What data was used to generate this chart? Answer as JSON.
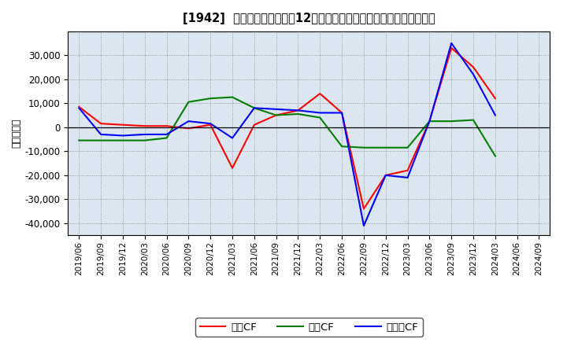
{
  "title": "[1942]  キャッシュフローの12か月移動合計の対前年同期増減額の推移",
  "ylabel": "（百万円）",
  "background_color": "#ffffff",
  "plot_background": "#dce6f1",
  "grid_color": "#aaaaaa",
  "x_labels": [
    "2019/06",
    "2019/09",
    "2019/12",
    "2020/03",
    "2020/06",
    "2020/09",
    "2020/12",
    "2021/03",
    "2021/06",
    "2021/09",
    "2021/12",
    "2022/03",
    "2022/06",
    "2022/09",
    "2022/12",
    "2023/03",
    "2023/06",
    "2023/09",
    "2023/12",
    "2024/03",
    "2024/06",
    "2024/09"
  ],
  "operating_cf": [
    8500,
    1500,
    1000,
    500,
    500,
    -500,
    1000,
    -17000,
    1000,
    5000,
    7000,
    14000,
    6000,
    -34000,
    -20000,
    -18000,
    2500,
    33000,
    25000,
    12000,
    null,
    null
  ],
  "investing_cf": [
    -5500,
    -5500,
    -5500,
    -5500,
    -4500,
    10500,
    12000,
    12500,
    8000,
    5000,
    5500,
    4000,
    -8000,
    -8500,
    -8500,
    -8500,
    2500,
    2500,
    3000,
    -12000,
    null,
    null
  ],
  "free_cf": [
    8000,
    -3000,
    -3500,
    -3000,
    -3000,
    2500,
    1500,
    -4500,
    8000,
    7500,
    7000,
    6000,
    6000,
    -41000,
    -20000,
    -21000,
    2500,
    35000,
    22000,
    5000,
    null,
    null
  ],
  "operating_color": "#ff0000",
  "investing_color": "#008000",
  "free_color": "#0000ff",
  "ylim": [
    -45000,
    40000
  ],
  "yticks": [
    -40000,
    -30000,
    -20000,
    -10000,
    0,
    10000,
    20000,
    30000
  ],
  "legend_labels": [
    "営業CF",
    "投資CF",
    "フリーCF"
  ]
}
